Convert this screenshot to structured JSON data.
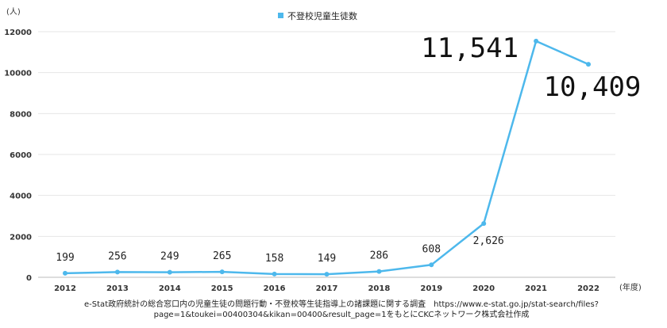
{
  "chart_data": {
    "type": "line",
    "y_unit": "(人)",
    "x_unit": "(年度)",
    "legend": "不登校児童生徒数",
    "categories": [
      "2012",
      "2013",
      "2014",
      "2015",
      "2016",
      "2017",
      "2018",
      "2019",
      "2020",
      "2021",
      "2022"
    ],
    "series": [
      {
        "name": "不登校児童生徒数",
        "values": [
          199,
          256,
          249,
          265,
          158,
          149,
          286,
          608,
          2626,
          11541,
          10409
        ],
        "labels": [
          "199",
          "256",
          "249",
          "265",
          "158",
          "149",
          "286",
          "608",
          "2,626",
          "11,541",
          "10,409"
        ]
      }
    ],
    "ylim": [
      0,
      12000
    ],
    "yticks": [
      "0",
      "2000",
      "4000",
      "6000",
      "8000",
      "10000",
      "12000"
    ],
    "grid": true,
    "legend_position": "top-center",
    "color": "#4db8ec"
  },
  "source": "e-Stat政府統計の総合窓口内の児童生徒の問題行動・不登校等生徒指導上の諸課題に関する調査　https://www.e-stat.go.jp/stat-search/files?page=1&toukei=00400304&kikan=00400&result_page=1をもとにCKCネットワーク株式会社作成"
}
